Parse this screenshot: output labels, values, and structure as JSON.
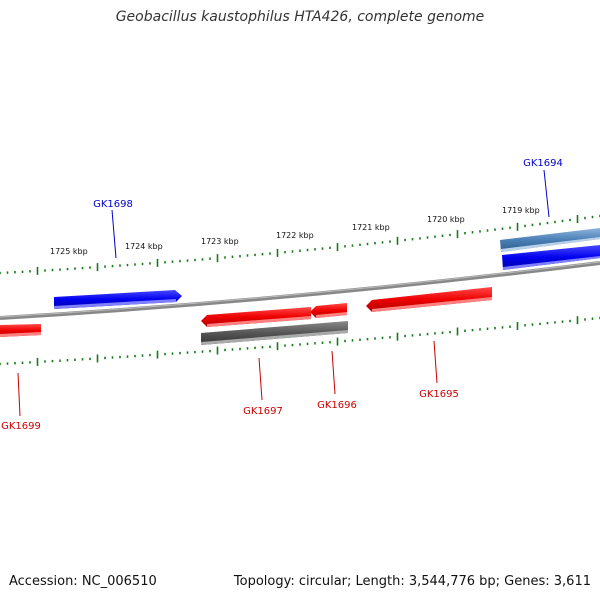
{
  "title": "Geobacillus kaustophilus HTA426, complete genome",
  "footer": {
    "accession": "Accession: NC_006510",
    "summary": "Topology: circular; Length: 3,544,776 bp; Genes: 3,611"
  },
  "colors": {
    "forward_gene": "#0000ee",
    "reverse_gene": "#ee0000",
    "other_forward": "#4a7fb5",
    "other_reverse": "#555555",
    "backbone": "#888888",
    "ticks": "#1a7a1a"
  },
  "scale": {
    "unit": "kbp",
    "labels": [
      "1719 kbp",
      "1720 kbp",
      "1721 kbp",
      "1722 kbp",
      "1723 kbp",
      "1724 kbp",
      "1725 kbp"
    ]
  },
  "genes": [
    {
      "name": "GK1694",
      "strand": "forward"
    },
    {
      "name": "GK1695",
      "strand": "reverse"
    },
    {
      "name": "GK1696",
      "strand": "reverse"
    },
    {
      "name": "GK1697",
      "strand": "reverse"
    },
    {
      "name": "GK1698",
      "strand": "forward"
    },
    {
      "name": "GK1699",
      "strand": "reverse"
    }
  ]
}
